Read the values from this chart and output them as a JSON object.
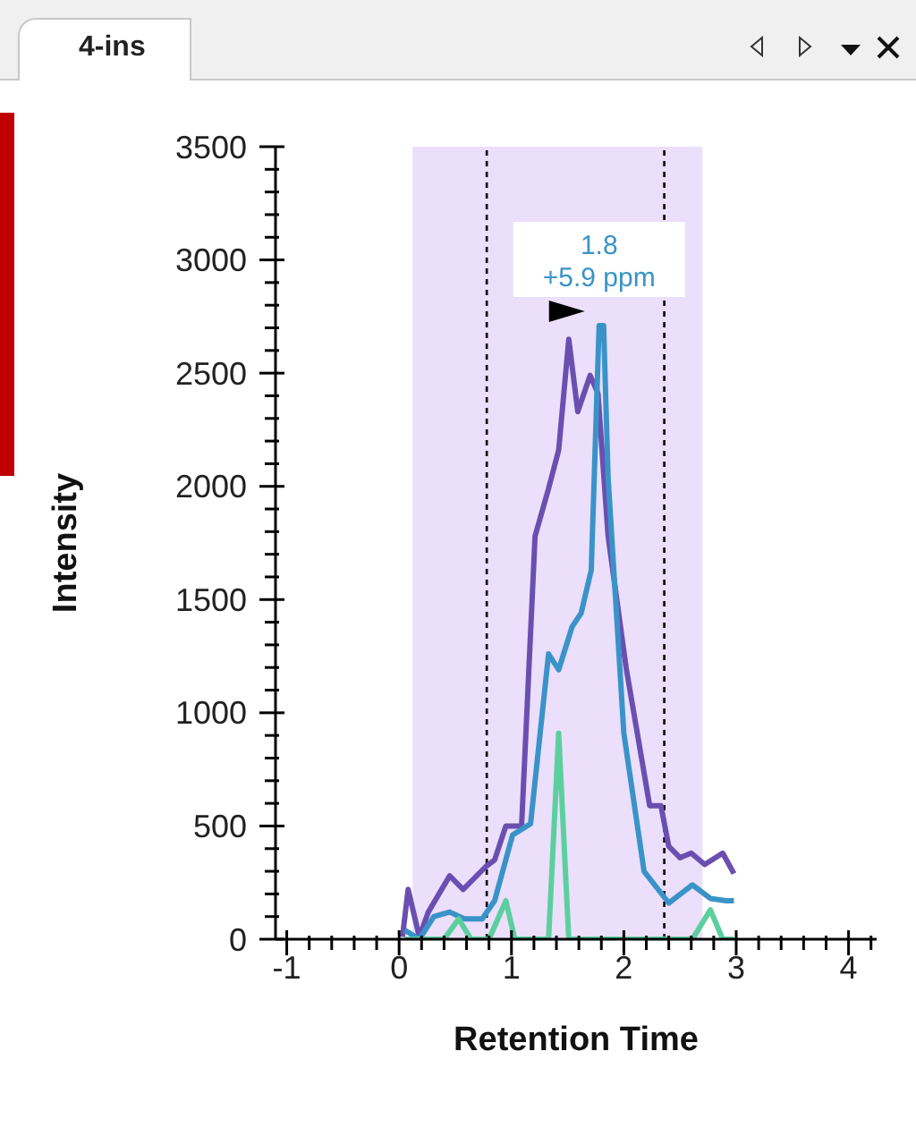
{
  "chart_data": {
    "type": "line",
    "title": "4-ins",
    "xlabel": "Retention Time",
    "ylabel": "Intensity",
    "xlim": [
      -1.1,
      4.25
    ],
    "xticks": [
      -1,
      {
        "value": -0.8,
        "label": null
      },
      {
        "value": -0.6,
        "label": null
      },
      {
        "value": -0.4,
        "label": null
      },
      {
        "value": -0.2,
        "label": null
      },
      0,
      {
        "value": 0.2,
        "label": null
      },
      {
        "value": 0.4,
        "label": null
      },
      {
        "value": 0.6,
        "label": null
      },
      {
        "value": 0.8,
        "label": null
      },
      1,
      {
        "value": 1.2,
        "label": null
      },
      {
        "value": 1.4,
        "label": null
      },
      {
        "value": 1.6,
        "label": null
      },
      {
        "value": 1.8,
        "label": null
      },
      2,
      {
        "value": 2.2,
        "label": null
      },
      {
        "value": 2.4,
        "label": null
      },
      {
        "value": 2.6,
        "label": null
      },
      {
        "value": 2.8,
        "label": null
      },
      3,
      {
        "value": 3.2,
        "label": null
      },
      {
        "value": 3.4,
        "label": null
      },
      {
        "value": 3.6,
        "label": null
      },
      {
        "value": 3.8,
        "label": null
      },
      4,
      {
        "value": 4.2,
        "label": null
      }
    ],
    "ylim": [
      0,
      3500
    ],
    "yticks": [
      0,
      {
        "value": 100,
        "label": null
      },
      {
        "value": 200,
        "label": null
      },
      {
        "value": 300,
        "label": null
      },
      {
        "value": 400,
        "label": null
      },
      500,
      {
        "value": 600,
        "label": null
      },
      {
        "value": 700,
        "label": null
      },
      {
        "value": 800,
        "label": null
      },
      {
        "value": 900,
        "label": null
      },
      1000,
      {
        "value": 1100,
        "label": null
      },
      {
        "value": 1200,
        "label": null
      },
      {
        "value": 1300,
        "label": null
      },
      {
        "value": 1400,
        "label": null
      },
      1500,
      {
        "value": 1600,
        "label": null
      },
      {
        "value": 1700,
        "label": null
      },
      {
        "value": 1800,
        "label": null
      },
      {
        "value": 1900,
        "label": null
      },
      2000,
      {
        "value": 2100,
        "label": null
      },
      {
        "value": 2200,
        "label": null
      },
      {
        "value": 2300,
        "label": null
      },
      {
        "value": 2400,
        "label": null
      },
      2500,
      {
        "value": 2600,
        "label": null
      },
      {
        "value": 2700,
        "label": null
      },
      {
        "value": 2800,
        "label": null
      },
      {
        "value": 2900,
        "label": null
      },
      3000,
      {
        "value": 3100,
        "label": null
      },
      {
        "value": 3200,
        "label": null
      },
      {
        "value": 3300,
        "label": null
      },
      {
        "value": 3400,
        "label": null
      },
      3500
    ],
    "marker": "none",
    "line_style": "solid",
    "series": [
      {
        "color": "#6a4fb0",
        "x": [
          0.03,
          0.08,
          0.18,
          0.26,
          0.45,
          0.57,
          0.77,
          0.85,
          0.95,
          1.09,
          1.21,
          1.33,
          1.42,
          1.51,
          1.59,
          1.7,
          1.77,
          1.86,
          2.02,
          2.23,
          2.33,
          2.4,
          2.5,
          2.6,
          2.72,
          2.88,
          2.98
        ],
        "values": [
          10,
          220,
          10,
          120,
          280,
          220,
          320,
          350,
          500,
          500,
          1780,
          1990,
          2160,
          2650,
          2330,
          2490,
          2410,
          1780,
          1200,
          590,
          590,
          410,
          360,
          380,
          330,
          380,
          290
        ]
      },
      {
        "color": "#3a93c8",
        "x": [
          0.05,
          0.18,
          0.31,
          0.45,
          0.58,
          0.74,
          0.85,
          1.01,
          1.17,
          1.33,
          1.42,
          1.54,
          1.62,
          1.71,
          1.78,
          1.82,
          1.86,
          2.0,
          2.18,
          2.4,
          2.61,
          2.77,
          2.91,
          2.98
        ],
        "values": [
          40,
          0,
          100,
          120,
          90,
          90,
          170,
          460,
          510,
          1260,
          1190,
          1380,
          1440,
          1630,
          2710,
          2710,
          2040,
          910,
          300,
          160,
          240,
          180,
          170,
          170
        ]
      },
      {
        "color": "#5ccf9f",
        "x": [
          0.05,
          0.4,
          0.53,
          0.64,
          0.8,
          0.95,
          1.03,
          1.33,
          1.42,
          1.51,
          2.61,
          2.77,
          2.88,
          2.98
        ],
        "values": [
          0,
          0,
          90,
          0,
          0,
          170,
          0,
          0,
          910,
          0,
          0,
          130,
          0,
          0
        ]
      }
    ],
    "bands": [
      {
        "axis": "x",
        "from": 0.12,
        "to": 2.7,
        "color": "#ebdffb"
      }
    ],
    "ref_lines": [
      {
        "axis": "x",
        "value": 0.78,
        "color": "#000000",
        "line_style": "dashed"
      },
      {
        "axis": "x",
        "value": 2.36,
        "color": "#000000",
        "line_style": "dashed"
      }
    ],
    "annotations": [
      "1.8\n+5.9 ppm"
    ]
  }
}
